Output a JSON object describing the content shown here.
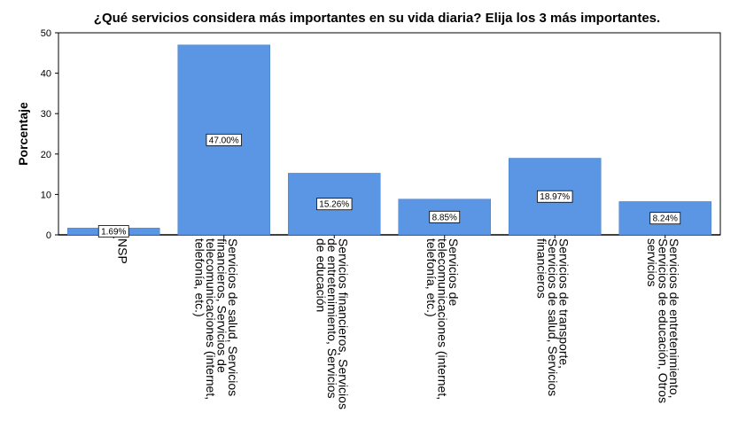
{
  "chart_data": {
    "type": "bar",
    "title": "¿Qué servicios considera más importantes en su vida diaria? Elija los 3 más importantes.",
    "xlabel": "",
    "ylabel": "Porcentaje",
    "ylim": [
      0,
      50
    ],
    "yticks": [
      0,
      10,
      20,
      30,
      40,
      50
    ],
    "grid": false,
    "bar_color": "#5a96e3",
    "categories": [
      "NSP",
      "Servicios de salud, Servicios financieros, Servicios de telecomunicaciones (internet, telefonía, etc.)",
      "Servicios financieros, Servicios de entretenimiento, Servicios de educación",
      "Servicios de telecomunicaciones (internet, telefonía, etc.)",
      "Servicios de transporte, Servicios de salud, Servicios financieros",
      "Servicios de entretenimiento, Servicios de educación, Otros servicios"
    ],
    "category_lines": [
      [
        "NSP"
      ],
      [
        "Servicios de salud, Servicios",
        "financieros, Servicios de",
        "telecomunicaciones (internet,",
        "telefonía, etc.)"
      ],
      [
        "Servicios financieros, Servicios",
        "de entretenimiento, Servicios",
        "de educación"
      ],
      [
        "Servicios de",
        "telecomunicaciones (internet,",
        "telefonía, etc.)"
      ],
      [
        "Servicios de transporte,",
        "Servicios de salud, Servicios",
        "financieros"
      ],
      [
        "Servicios de entretenimiento,",
        "Servicios de educación, Otros",
        "servicios"
      ]
    ],
    "values": [
      1.69,
      47.0,
      15.26,
      8.85,
      18.97,
      8.24
    ],
    "data_labels": [
      "1.69%",
      "47.00%",
      "15.26%",
      "8.85%",
      "18.97%",
      "8.24%"
    ]
  }
}
